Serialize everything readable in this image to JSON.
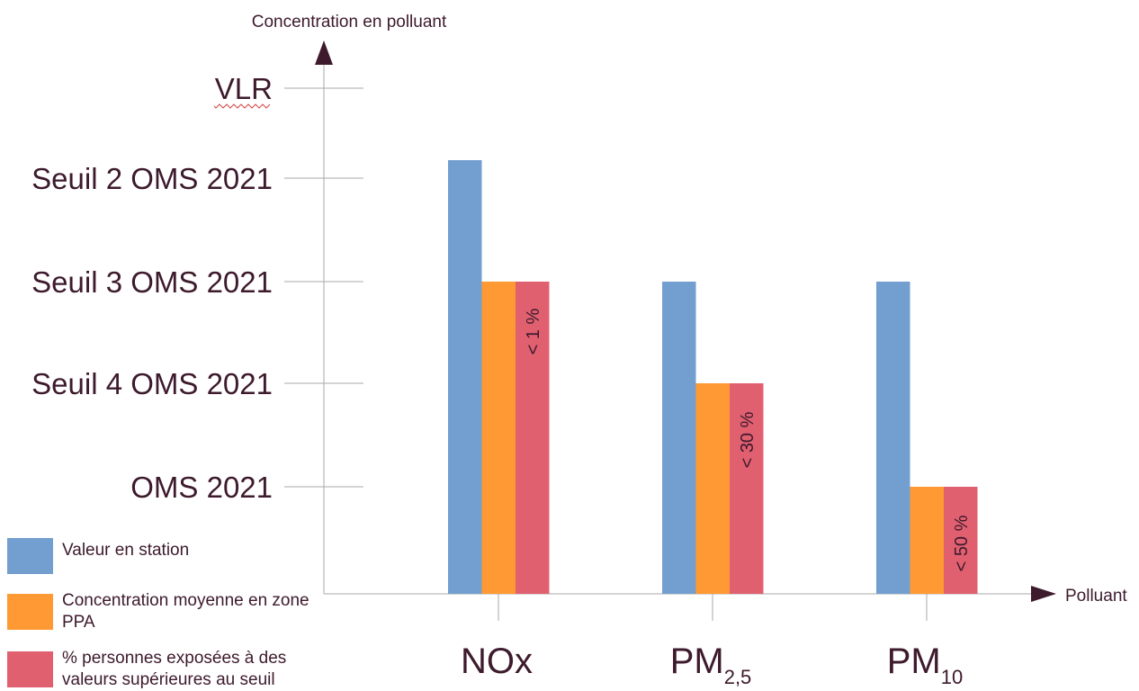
{
  "chart_data": {
    "type": "bar",
    "y_axis_title": "Concentration en polluant",
    "x_axis_title": "Polluant",
    "y_levels": [
      {
        "label": "OMS 2021",
        "level": 1
      },
      {
        "label": "Seuil 4 OMS 2021",
        "level": 2
      },
      {
        "label": "Seuil 3 OMS 2021",
        "level": 3
      },
      {
        "label": "Seuil 2 OMS 2021",
        "level": 4
      },
      {
        "label": "VLR",
        "level": 5
      }
    ],
    "categories": [
      {
        "base": "NOx",
        "sub": ""
      },
      {
        "base": "PM",
        "sub": "2,5"
      },
      {
        "base": "PM",
        "sub": "10"
      }
    ],
    "series": [
      {
        "name": "Valeur en station",
        "color": "#729fcf",
        "values": [
          4.2,
          3.0,
          3.0
        ]
      },
      {
        "name": "Concentration moyenne en zone PPA",
        "color": "#ff9933",
        "values": [
          3.0,
          2.0,
          1.0
        ]
      },
      {
        "name": "% personnes exposées à des valeurs supérieures au seuil",
        "color": "#e06070",
        "values": [
          3.0,
          2.0,
          1.0
        ]
      }
    ],
    "bar_labels": [
      "< 1 %",
      "< 30 %",
      "< 50 %"
    ],
    "ylim": [
      0,
      5.5
    ],
    "grid": false,
    "legend_position": "bottom-left"
  },
  "legend": [
    {
      "text": "Valeur en station",
      "color": "#729fcf"
    },
    {
      "text": "Concentration moyenne en zone PPA",
      "color": "#ff9933"
    },
    {
      "text": "% personnes exposées à des valeurs supérieures au seuil",
      "color": "#e06070"
    }
  ]
}
